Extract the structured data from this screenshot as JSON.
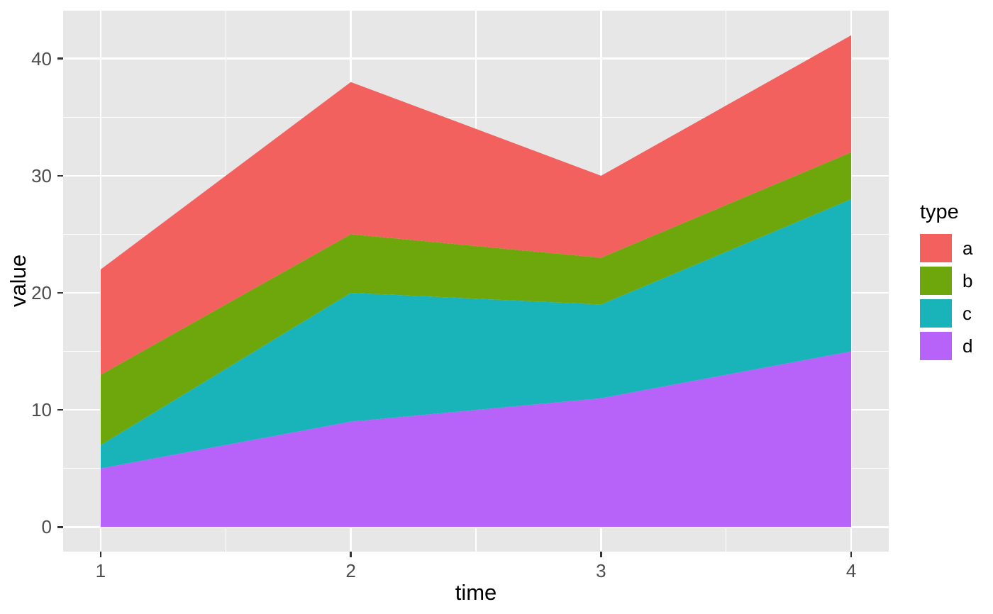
{
  "figure": {
    "background": "#FFFFFF",
    "panel_background": "#E7E7E7",
    "grid_color": "#FFFFFF",
    "tick_color": "#333333",
    "tick_label_color": "#4D4D4D",
    "axis_title_color": "#000000"
  },
  "chart_data": {
    "type": "area",
    "stacked": true,
    "title": "",
    "xlabel": "time",
    "ylabel": "value",
    "x": [
      1,
      2,
      3,
      4
    ],
    "series": [
      {
        "name": "d",
        "color": "#B763FA",
        "values": [
          5,
          9,
          11,
          15
        ]
      },
      {
        "name": "c",
        "color": "#19B4BA",
        "values": [
          2,
          11,
          8,
          13
        ]
      },
      {
        "name": "b",
        "color": "#6EA70B",
        "values": [
          6,
          5,
          4,
          4
        ]
      },
      {
        "name": "a",
        "color": "#F2615D",
        "values": [
          9,
          13,
          7,
          10
        ]
      }
    ],
    "stack_order_bottom_to_top": [
      "d",
      "c",
      "b",
      "a"
    ],
    "cumulative_tops": {
      "d": [
        5,
        9,
        11,
        15
      ],
      "c": [
        7,
        20,
        19,
        28
      ],
      "b": [
        13,
        25,
        23,
        32
      ],
      "a": [
        22,
        38,
        30,
        42
      ]
    },
    "x_ticks": [
      1,
      2,
      3,
      4
    ],
    "y_ticks": [
      0,
      10,
      20,
      30,
      40
    ],
    "x_minor_ticks": [
      1.5,
      2.5,
      3.5
    ],
    "y_minor_ticks": [
      5,
      15,
      25,
      35
    ],
    "xlim": [
      0.85,
      4.15
    ],
    "ylim": [
      -2.1,
      44.1
    ],
    "grid": true,
    "legend": {
      "title": "type",
      "position": "right",
      "entries": [
        {
          "label": "a",
          "color": "#F2615D"
        },
        {
          "label": "b",
          "color": "#6EA70B"
        },
        {
          "label": "c",
          "color": "#19B4BA"
        },
        {
          "label": "d",
          "color": "#B763FA"
        }
      ]
    }
  }
}
